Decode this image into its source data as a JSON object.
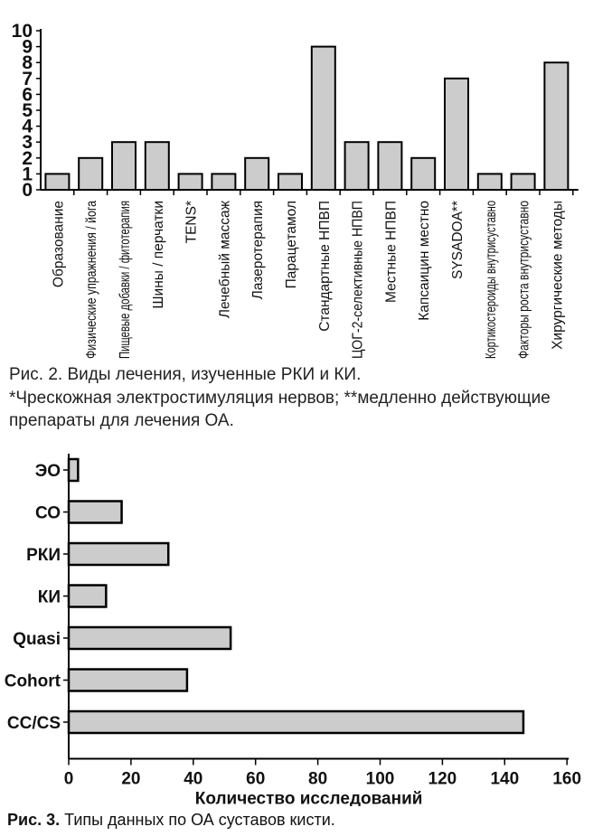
{
  "chart_data": [
    {
      "type": "bar",
      "orientation": "vertical",
      "categories": [
        "Образование",
        "Физические упражнения / йога",
        "Пищевые добавки / фитотерапия",
        "Шины / перчатки",
        "TENS*",
        "Лечебный массаж",
        "Лазеротерапия",
        "Парацетамол",
        "Стандартные НПВП",
        "ЦОГ-2-селективные НПВП",
        "Местные НПВП",
        "Капсаицин местно",
        "SYSADOA**",
        "Кортикостероиды внутрисуставно",
        "Факторы роста внутрисуставно",
        "Хирургические методы"
      ],
      "values": [
        1,
        2,
        3,
        3,
        1,
        1,
        2,
        1,
        9,
        3,
        3,
        2,
        7,
        1,
        1,
        8
      ],
      "ylim": [
        0,
        10
      ],
      "yticks": [
        0,
        1,
        2,
        3,
        4,
        5,
        6,
        7,
        8,
        9,
        10
      ],
      "grid": false,
      "bar_color": "#cccccc"
    },
    {
      "type": "bar",
      "orientation": "horizontal",
      "categories": [
        "ЭО",
        "СО",
        "РКИ",
        "КИ",
        "Quasi",
        "Cohort",
        "CC/CS"
      ],
      "values": [
        3,
        17,
        32,
        12,
        52,
        38,
        146
      ],
      "xlabel": "Количество исследований",
      "xlim": [
        0,
        160
      ],
      "xticks": [
        0,
        20,
        40,
        60,
        80,
        100,
        120,
        140,
        160
      ],
      "grid": false,
      "bar_color": "#cccccc"
    }
  ],
  "captions": {
    "fig2_title": "Рис. 2. Виды лечения, изученные РКИ и КИ.",
    "fig2_note": "*Чрескожная электростимуляция нервов; **медленно действующие препараты для лечения ОА.",
    "fig3_prefix": "Рис. 3.",
    "fig3_title": " Типы данных по ОА суставов кисти."
  }
}
